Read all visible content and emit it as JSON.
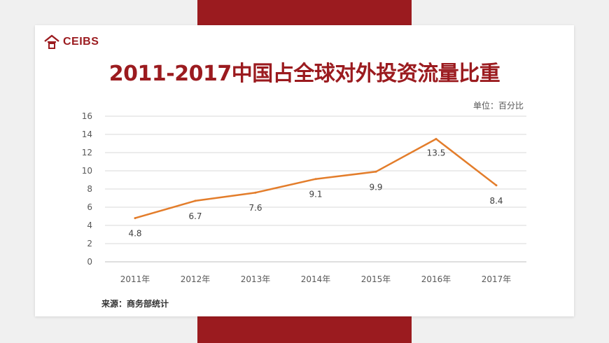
{
  "brand": {
    "name": "CEIBS",
    "color": "#9b1b1f"
  },
  "unit_label": "单位：百分比",
  "source_label": "来源：商务部统计",
  "chart_data": {
    "type": "line",
    "title": "2011-2017中国占全球对外投资流量比重",
    "categories": [
      "2011年",
      "2012年",
      "2013年",
      "2014年",
      "2015年",
      "2016年",
      "2017年"
    ],
    "values": [
      4.8,
      6.7,
      7.6,
      9.1,
      9.9,
      13.5,
      8.4
    ],
    "data_labels": [
      "4.8",
      "6.7",
      "7.6",
      "9.1",
      "9.9",
      "13.5",
      "8.4"
    ],
    "y_ticks": [
      "0",
      "2",
      "4",
      "6",
      "8",
      "10",
      "12",
      "14",
      "16"
    ],
    "ylim": [
      0,
      16
    ],
    "line_color": "#e37d2b",
    "grid": true
  }
}
